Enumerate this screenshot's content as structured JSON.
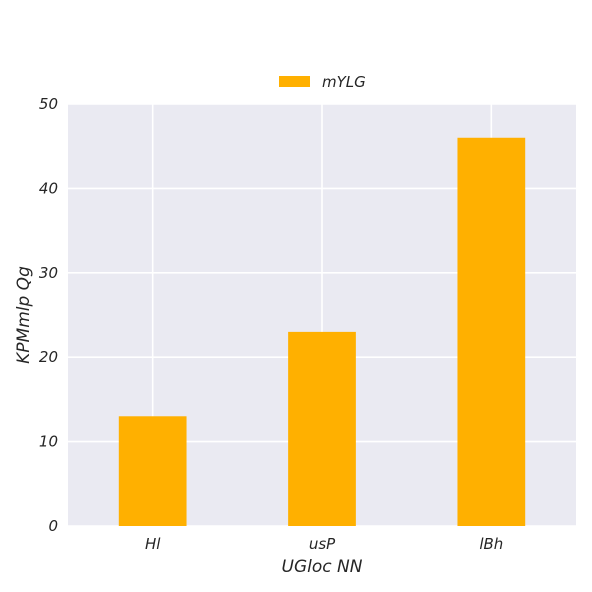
{
  "chart_data": {
    "type": "bar",
    "categories": [
      "Hl",
      "usP",
      "lBh"
    ],
    "series": [
      {
        "name": "mYLG",
        "values": [
          13,
          23,
          46
        ],
        "color": "#FFB000"
      }
    ],
    "xlabel": "UGloc NN",
    "ylabel": "KPMmlp Qg",
    "ylim": [
      0,
      50
    ],
    "yticks": [
      0,
      10,
      20,
      30,
      40,
      50
    ],
    "grid": true,
    "legend_position": "top-center",
    "plot_background": "#EAEAF2",
    "grid_color": "#FFFFFF"
  }
}
